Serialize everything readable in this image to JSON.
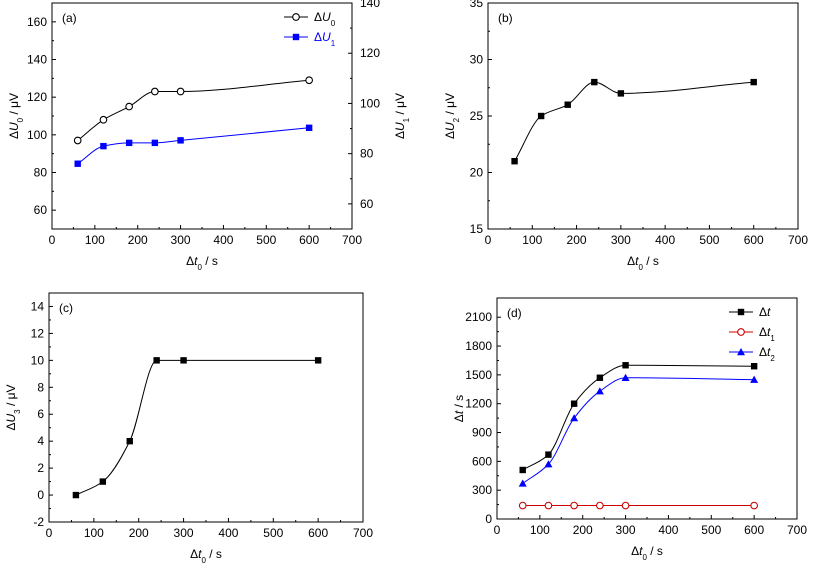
{
  "chart_data": [
    {
      "id": "a",
      "type": "line",
      "panel_label": "(a)",
      "xlabel": "Δt0 / s",
      "ylabel": "ΔU0 / μV",
      "y2label": "ΔU1 / μV",
      "xlim": [
        0,
        700
      ],
      "xticks": [
        0,
        100,
        200,
        300,
        400,
        500,
        600,
        700
      ],
      "ylim": [
        50,
        170
      ],
      "yticks": [
        60,
        80,
        100,
        120,
        140,
        160
      ],
      "y2lim": [
        50,
        140
      ],
      "y2ticks": [
        60,
        80,
        100,
        120,
        140
      ],
      "y2color": "#0000ff",
      "legend": {
        "position": "top-right",
        "entries": [
          "ΔU0",
          "ΔU1"
        ]
      },
      "series": [
        {
          "name": "ΔU0",
          "axis": "left",
          "marker": "circle-open",
          "color": "#000000",
          "x": [
            60,
            120,
            180,
            240,
            300,
            600
          ],
          "values": [
            97,
            108,
            115,
            123,
            123,
            129
          ]
        },
        {
          "name": "ΔU1",
          "axis": "right",
          "marker": "square",
          "color": "#0000ff",
          "x": [
            60,
            120,
            180,
            240,
            300,
            600
          ],
          "values": [
            76,
            83,
            84.3,
            84.3,
            85.3,
            90.3
          ]
        }
      ]
    },
    {
      "id": "b",
      "type": "line",
      "panel_label": "(b)",
      "xlabel": "Δt0 / s",
      "ylabel": "ΔU2 / μV",
      "xlim": [
        0,
        700
      ],
      "xticks": [
        0,
        100,
        200,
        300,
        400,
        500,
        600,
        700
      ],
      "ylim": [
        15,
        35
      ],
      "yticks": [
        15,
        20,
        25,
        30,
        35
      ],
      "series": [
        {
          "name": "ΔU2",
          "marker": "square",
          "color": "#000000",
          "x": [
            60,
            120,
            180,
            240,
            300,
            600
          ],
          "values": [
            21,
            25,
            26,
            28,
            27,
            28
          ]
        }
      ]
    },
    {
      "id": "c",
      "type": "line",
      "panel_label": "(c)",
      "xlabel": "Δt0 / s",
      "ylabel": "ΔU3 / μV",
      "xlim": [
        0,
        700
      ],
      "xticks": [
        0,
        100,
        200,
        300,
        400,
        500,
        600,
        700
      ],
      "ylim": [
        -2,
        15
      ],
      "yticks": [
        -2,
        0,
        2,
        4,
        6,
        8,
        10,
        12,
        14
      ],
      "series": [
        {
          "name": "ΔU3",
          "marker": "square",
          "color": "#000000",
          "x": [
            60,
            120,
            180,
            240,
            300,
            600
          ],
          "values": [
            0,
            1,
            4,
            10,
            10,
            10
          ]
        }
      ]
    },
    {
      "id": "d",
      "type": "line",
      "panel_label": "(d)",
      "xlabel": "Δt0 / s",
      "ylabel": "Δt / s",
      "xlim": [
        0,
        700
      ],
      "xticks": [
        0,
        100,
        200,
        300,
        400,
        500,
        600,
        700
      ],
      "ylim": [
        0,
        2300
      ],
      "yticks": [
        0,
        300,
        600,
        900,
        1200,
        1500,
        1800,
        2100
      ],
      "legend": {
        "position": "top-right",
        "entries": [
          "Δt",
          "Δt1",
          "Δt2"
        ]
      },
      "series": [
        {
          "name": "Δt",
          "marker": "square",
          "color": "#000000",
          "x": [
            60,
            120,
            180,
            240,
            300,
            600
          ],
          "values": [
            510,
            670,
            1200,
            1470,
            1600,
            1590
          ]
        },
        {
          "name": "Δt1",
          "marker": "circle-open",
          "color": "#cc0000",
          "x": [
            60,
            120,
            180,
            240,
            300,
            600
          ],
          "values": [
            140,
            140,
            140,
            140,
            140,
            140
          ]
        },
        {
          "name": "Δt2",
          "marker": "triangle",
          "color": "#0000ff",
          "x": [
            60,
            120,
            180,
            240,
            300,
            600
          ],
          "values": [
            370,
            570,
            1050,
            1330,
            1470,
            1450
          ]
        }
      ]
    }
  ]
}
